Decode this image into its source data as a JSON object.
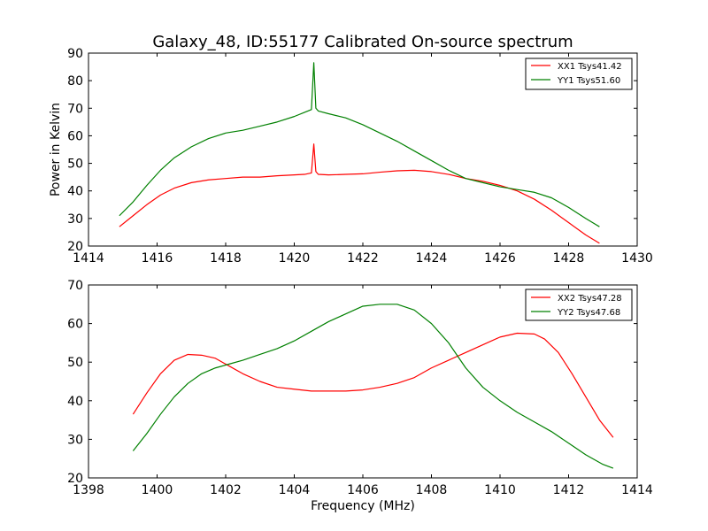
{
  "chart_data": [
    {
      "type": "line",
      "title": "Galaxy_48, ID:55177 Calibrated On-source spectrum",
      "xlabel": "",
      "ylabel": "Power in Kelvin",
      "xlim": [
        1414,
        1430
      ],
      "ylim": [
        20,
        90
      ],
      "xticks": [
        1414,
        1416,
        1418,
        1420,
        1422,
        1424,
        1426,
        1428,
        1430
      ],
      "yticks": [
        20,
        30,
        40,
        50,
        60,
        70,
        80,
        90
      ],
      "grid": false,
      "legend_position": "top-right",
      "series": [
        {
          "name": "XX1 Tsys41.42",
          "color": "#ff0000",
          "x": [
            1414.9,
            1415.3,
            1415.7,
            1416.1,
            1416.5,
            1417.0,
            1417.5,
            1418.0,
            1418.5,
            1419.0,
            1419.5,
            1420.0,
            1420.3,
            1420.5,
            1420.57,
            1420.63,
            1420.7,
            1421.0,
            1421.5,
            1422.0,
            1422.5,
            1423.0,
            1423.5,
            1424.0,
            1424.5,
            1425.0,
            1425.5,
            1426.0,
            1426.5,
            1427.0,
            1427.5,
            1428.0,
            1428.5,
            1428.9
          ],
          "values": [
            27,
            31,
            35,
            38.5,
            41,
            43,
            44,
            44.5,
            45,
            45,
            45.5,
            45.8,
            46,
            46.5,
            57,
            47,
            46,
            45.8,
            46,
            46.2,
            46.8,
            47.3,
            47.5,
            47,
            46,
            44.5,
            43.5,
            42,
            40,
            37,
            33,
            28.5,
            24,
            21
          ]
        },
        {
          "name": "YY1 Tsys51.60",
          "color": "#008000",
          "x": [
            1414.9,
            1415.3,
            1415.7,
            1416.1,
            1416.5,
            1417.0,
            1417.5,
            1418.0,
            1418.5,
            1419.0,
            1419.5,
            1420.0,
            1420.3,
            1420.5,
            1420.57,
            1420.63,
            1420.7,
            1421.0,
            1421.5,
            1422.0,
            1422.5,
            1423.0,
            1423.5,
            1424.0,
            1424.5,
            1425.0,
            1425.5,
            1426.0,
            1426.5,
            1427.0,
            1427.5,
            1428.0,
            1428.5,
            1428.9
          ],
          "values": [
            31,
            36,
            42,
            47.5,
            52,
            56,
            59,
            61,
            62,
            63.5,
            65,
            67,
            68.5,
            69.5,
            86.5,
            70,
            69,
            68,
            66.5,
            64,
            61,
            58,
            54.5,
            51,
            47.5,
            44.5,
            43,
            41.5,
            40.5,
            39.5,
            37.5,
            34,
            30,
            27
          ]
        }
      ]
    },
    {
      "type": "line",
      "title": "",
      "xlabel": "Frequency (MHz)",
      "ylabel": "",
      "xlim": [
        1398,
        1414
      ],
      "ylim": [
        20,
        70
      ],
      "xticks": [
        1398,
        1400,
        1402,
        1404,
        1406,
        1408,
        1410,
        1412,
        1414
      ],
      "yticks": [
        20,
        30,
        40,
        50,
        60,
        70
      ],
      "grid": false,
      "legend_position": "top-right",
      "series": [
        {
          "name": "XX2 Tsys47.28",
          "color": "#ff0000",
          "x": [
            1399.3,
            1399.7,
            1400.1,
            1400.5,
            1400.9,
            1401.3,
            1401.7,
            1402.1,
            1402.5,
            1403.0,
            1403.5,
            1404.0,
            1404.5,
            1405.0,
            1405.5,
            1406.0,
            1406.5,
            1407.0,
            1407.5,
            1408.0,
            1408.5,
            1409.0,
            1409.5,
            1410.0,
            1410.5,
            1411.0,
            1411.3,
            1411.7,
            1412.1,
            1412.5,
            1412.9,
            1413.3
          ],
          "values": [
            36.5,
            42,
            47,
            50.5,
            52,
            51.8,
            51,
            49,
            47,
            45,
            43.5,
            43,
            42.5,
            42.5,
            42.5,
            42.8,
            43.5,
            44.5,
            46,
            48.5,
            50.5,
            52.5,
            54.5,
            56.5,
            57.5,
            57.3,
            56,
            52.5,
            47,
            41,
            35,
            30.5
          ]
        },
        {
          "name": "YY2 Tsys47.68",
          "color": "#008000",
          "x": [
            1399.3,
            1399.7,
            1400.1,
            1400.5,
            1400.9,
            1401.3,
            1401.7,
            1402.1,
            1402.5,
            1403.0,
            1403.5,
            1404.0,
            1404.5,
            1405.0,
            1405.5,
            1406.0,
            1406.5,
            1407.0,
            1407.5,
            1408.0,
            1408.5,
            1409.0,
            1409.5,
            1410.0,
            1410.5,
            1411.0,
            1411.5,
            1412.0,
            1412.5,
            1413.0,
            1413.3
          ],
          "values": [
            27,
            31.5,
            36.5,
            41,
            44.5,
            47,
            48.5,
            49.5,
            50.5,
            52,
            53.5,
            55.5,
            58,
            60.5,
            62.5,
            64.5,
            65,
            65,
            63.5,
            60,
            55,
            48.5,
            43.5,
            40,
            37,
            34.5,
            32,
            29,
            26,
            23.5,
            22.5
          ]
        }
      ]
    }
  ]
}
